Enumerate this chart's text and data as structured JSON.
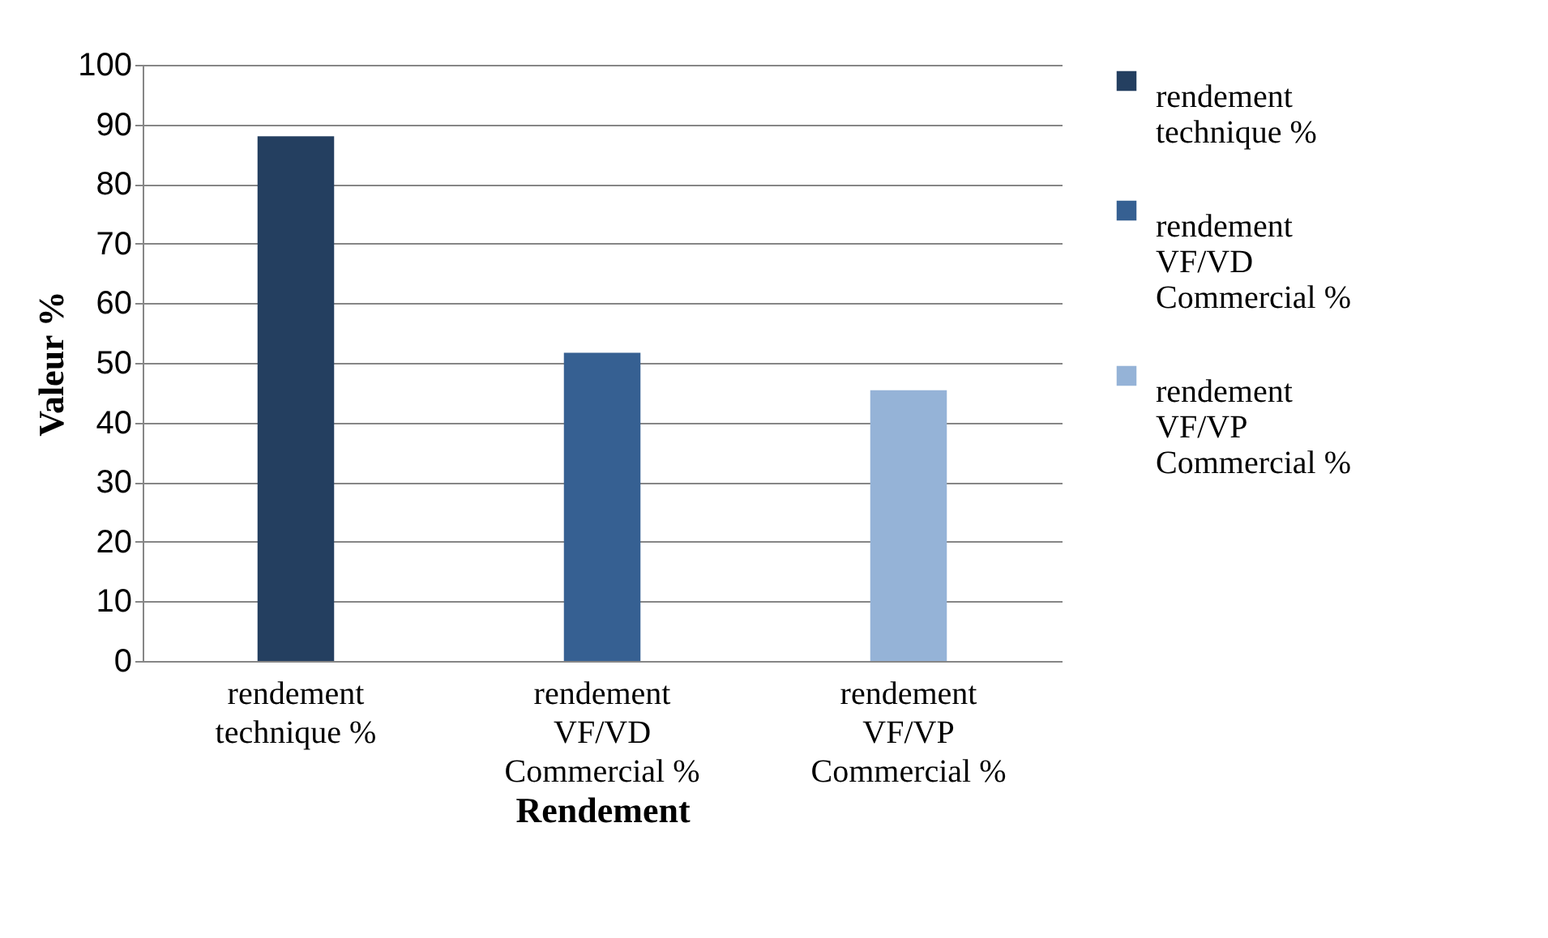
{
  "chart_data": {
    "type": "bar",
    "xlabel": "Rendement",
    "ylabel": "Valeur %",
    "categories": [
      "rendement technique %",
      "rendement VF/VD Commercial %",
      "rendement VF/VP Commercial %"
    ],
    "series": [
      {
        "name": "rendement technique %",
        "color": "#243f60",
        "values": [
          88,
          null,
          null
        ]
      },
      {
        "name": "rendement VF/VD Commercial %",
        "color": "#366092",
        "values": [
          null,
          51.7,
          null
        ]
      },
      {
        "name": "rendement VF/VP Commercial %",
        "color": "#95b3d7",
        "values": [
          null,
          null,
          45.4
        ]
      }
    ],
    "ylim": [
      0,
      100
    ],
    "yticks": [
      0,
      10,
      20,
      30,
      40,
      50,
      60,
      70,
      80,
      90,
      100
    ],
    "grid": "y",
    "legend": "right"
  }
}
